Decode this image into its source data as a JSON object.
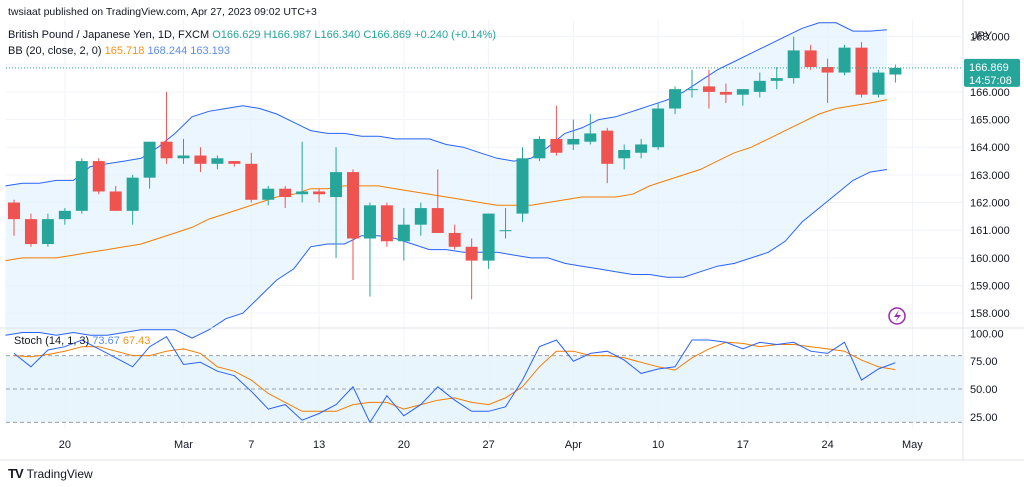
{
  "header": {
    "published_line": "twsiaat published on TradingView.com, Apr 27, 2023 09:02 UTC+3",
    "symbol_line": "British Pound / Japanese Yen, 1D, FXCM",
    "ohlc": {
      "O": "O166.629",
      "H": "H166.987",
      "L": "L166.340",
      "C": "C166.869",
      "chg": "+0.240 (+0.14%)"
    },
    "bb_label": "BB (20, close, 2, 0)",
    "bb_values": {
      "basis": "165.718",
      "upper": "168.244",
      "lower": "163.193"
    },
    "currency": "JPY"
  },
  "stoch_header": {
    "label": "Stoch (14, 1, 3)",
    "k": "73.67",
    "d": "67.43"
  },
  "price_badge": {
    "price": "166.869",
    "countdown": "14:57:08"
  },
  "brand": {
    "name": "TradingView",
    "logo": "TV"
  },
  "colors": {
    "up": "#26a69a",
    "down": "#ef5350",
    "bb_band": "#2962ff",
    "bb_basis": "#f57c00",
    "bb_fill": "#e3f2fd",
    "stoch_k": "#2962ff",
    "stoch_d": "#f57c00",
    "grid": "#f0f3fa"
  },
  "chart_data": [
    {
      "type": "candlestick",
      "title": "British Pound / Japanese Yen, 1D, FXCM",
      "ylabel": "JPY",
      "ylim": [
        157.5,
        168.6
      ],
      "yticks": [
        158.0,
        159.0,
        160.0,
        161.0,
        162.0,
        163.0,
        164.0,
        165.0,
        166.0,
        167.0,
        168.0
      ],
      "xticks": [
        {
          "label": "20",
          "i": 3
        },
        {
          "label": "Mar",
          "i": 10
        },
        {
          "label": "7",
          "i": 14
        },
        {
          "label": "13",
          "i": 18
        },
        {
          "label": "20",
          "i": 23
        },
        {
          "label": "27",
          "i": 28
        },
        {
          "label": "Apr",
          "i": 33
        },
        {
          "label": "10",
          "i": 38
        },
        {
          "label": "17",
          "i": 43
        },
        {
          "label": "24",
          "i": 48
        },
        {
          "label": "May",
          "i": 53
        }
      ],
      "candles": [
        {
          "o": 162.0,
          "h": 162.1,
          "l": 160.8,
          "c": 161.4
        },
        {
          "o": 161.4,
          "h": 161.6,
          "l": 160.4,
          "c": 160.5
        },
        {
          "o": 160.5,
          "h": 161.6,
          "l": 160.4,
          "c": 161.4
        },
        {
          "o": 161.4,
          "h": 161.8,
          "l": 161.2,
          "c": 161.7
        },
        {
          "o": 161.7,
          "h": 163.6,
          "l": 161.6,
          "c": 163.5
        },
        {
          "o": 163.5,
          "h": 163.6,
          "l": 162.3,
          "c": 162.4
        },
        {
          "o": 162.4,
          "h": 162.6,
          "l": 161.7,
          "c": 161.7
        },
        {
          "o": 161.7,
          "h": 163.0,
          "l": 161.2,
          "c": 162.9
        },
        {
          "o": 162.9,
          "h": 164.2,
          "l": 162.5,
          "c": 164.2
        },
        {
          "o": 164.2,
          "h": 166.0,
          "l": 163.4,
          "c": 163.6
        },
        {
          "o": 163.6,
          "h": 164.3,
          "l": 163.4,
          "c": 163.7
        },
        {
          "o": 163.7,
          "h": 164.0,
          "l": 163.1,
          "c": 163.4
        },
        {
          "o": 163.4,
          "h": 163.7,
          "l": 163.2,
          "c": 163.6
        },
        {
          "o": 163.5,
          "h": 163.5,
          "l": 163.3,
          "c": 163.4
        },
        {
          "o": 163.4,
          "h": 163.8,
          "l": 162.0,
          "c": 162.1
        },
        {
          "o": 162.1,
          "h": 162.6,
          "l": 161.9,
          "c": 162.5
        },
        {
          "o": 162.5,
          "h": 162.6,
          "l": 161.8,
          "c": 162.2
        },
        {
          "o": 162.3,
          "h": 164.2,
          "l": 162.0,
          "c": 162.4
        },
        {
          "o": 162.4,
          "h": 162.5,
          "l": 162.0,
          "c": 162.3
        },
        {
          "o": 162.2,
          "h": 164.0,
          "l": 160.0,
          "c": 163.1
        },
        {
          "o": 163.1,
          "h": 163.2,
          "l": 159.2,
          "c": 160.7
        },
        {
          "o": 160.7,
          "h": 162.0,
          "l": 158.6,
          "c": 161.9
        },
        {
          "o": 161.9,
          "h": 162.0,
          "l": 160.4,
          "c": 160.6
        },
        {
          "o": 160.6,
          "h": 161.8,
          "l": 159.9,
          "c": 161.2
        },
        {
          "o": 161.2,
          "h": 162.0,
          "l": 160.8,
          "c": 161.8
        },
        {
          "o": 161.8,
          "h": 163.2,
          "l": 160.9,
          "c": 160.9
        },
        {
          "o": 160.9,
          "h": 161.2,
          "l": 160.3,
          "c": 160.4
        },
        {
          "o": 160.4,
          "h": 160.7,
          "l": 158.5,
          "c": 159.9
        },
        {
          "o": 159.9,
          "h": 161.6,
          "l": 159.6,
          "c": 161.6
        },
        {
          "o": 161.0,
          "h": 161.8,
          "l": 160.7,
          "c": 161.0
        },
        {
          "o": 161.6,
          "h": 164.0,
          "l": 161.3,
          "c": 163.6
        },
        {
          "o": 163.6,
          "h": 164.4,
          "l": 163.5,
          "c": 164.3
        },
        {
          "o": 164.3,
          "h": 165.5,
          "l": 163.7,
          "c": 163.8
        },
        {
          "o": 164.1,
          "h": 165.0,
          "l": 163.9,
          "c": 164.3
        },
        {
          "o": 164.2,
          "h": 165.2,
          "l": 164.1,
          "c": 164.5
        },
        {
          "o": 164.6,
          "h": 164.7,
          "l": 162.7,
          "c": 163.4
        },
        {
          "o": 163.6,
          "h": 164.1,
          "l": 163.2,
          "c": 163.9
        },
        {
          "o": 163.8,
          "h": 164.3,
          "l": 163.6,
          "c": 164.1
        },
        {
          "o": 164.0,
          "h": 165.6,
          "l": 163.9,
          "c": 165.4
        },
        {
          "o": 165.4,
          "h": 166.2,
          "l": 165.2,
          "c": 166.1
        },
        {
          "o": 166.1,
          "h": 166.8,
          "l": 165.8,
          "c": 166.1
        },
        {
          "o": 166.2,
          "h": 166.8,
          "l": 165.4,
          "c": 166.0
        },
        {
          "o": 166.0,
          "h": 166.3,
          "l": 165.6,
          "c": 165.9
        },
        {
          "o": 165.9,
          "h": 166.1,
          "l": 165.5,
          "c": 166.1
        },
        {
          "o": 166.0,
          "h": 166.7,
          "l": 165.8,
          "c": 166.4
        },
        {
          "o": 166.4,
          "h": 166.9,
          "l": 166.1,
          "c": 166.5
        },
        {
          "o": 166.5,
          "h": 168.0,
          "l": 166.3,
          "c": 167.5
        },
        {
          "o": 167.5,
          "h": 167.7,
          "l": 166.8,
          "c": 166.9
        },
        {
          "o": 166.9,
          "h": 167.2,
          "l": 165.6,
          "c": 166.7
        },
        {
          "o": 166.7,
          "h": 167.7,
          "l": 166.6,
          "c": 167.6
        },
        {
          "o": 167.6,
          "h": 167.8,
          "l": 165.8,
          "c": 165.9
        },
        {
          "o": 165.9,
          "h": 166.8,
          "l": 165.8,
          "c": 166.7
        },
        {
          "o": 166.629,
          "h": 166.987,
          "l": 166.34,
          "c": 166.869
        }
      ],
      "bb_upper": [
        162.6,
        162.7,
        162.7,
        162.8,
        162.8,
        163.3,
        163.4,
        163.5,
        163.6,
        164.0,
        164.5,
        165.1,
        165.3,
        165.4,
        165.5,
        165.4,
        165.2,
        164.9,
        164.6,
        164.5,
        164.5,
        164.4,
        164.4,
        164.3,
        164.3,
        164.3,
        164.1,
        164.0,
        163.8,
        163.6,
        163.5,
        163.6,
        164.0,
        164.5,
        164.7,
        165.0,
        165.1,
        165.3,
        165.5,
        165.7,
        166.0,
        166.4,
        166.8,
        167.1,
        167.4,
        167.7,
        168.0,
        168.3,
        168.5,
        168.5,
        168.2,
        168.2,
        168.244
      ],
      "bb_basis": [
        159.9,
        160.0,
        160.0,
        160.0,
        160.1,
        160.2,
        160.3,
        160.4,
        160.5,
        160.7,
        160.9,
        161.1,
        161.4,
        161.6,
        161.8,
        162.0,
        162.2,
        162.3,
        162.5,
        162.5,
        162.6,
        162.6,
        162.6,
        162.5,
        162.4,
        162.3,
        162.2,
        162.1,
        162.0,
        161.9,
        161.9,
        161.9,
        162.0,
        162.1,
        162.2,
        162.2,
        162.2,
        162.3,
        162.6,
        162.8,
        163.0,
        163.2,
        163.5,
        163.8,
        164.0,
        164.3,
        164.6,
        164.9,
        165.2,
        165.4,
        165.5,
        165.6,
        165.718
      ],
      "bb_lower": [
        157.2,
        157.3,
        157.3,
        157.2,
        157.3,
        157.2,
        157.2,
        157.3,
        157.4,
        157.4,
        157.4,
        157.1,
        157.4,
        157.8,
        158.0,
        158.6,
        159.2,
        159.6,
        160.4,
        160.5,
        160.5,
        160.8,
        160.8,
        160.7,
        160.5,
        160.3,
        160.3,
        160.2,
        160.2,
        160.2,
        160.1,
        160.0,
        160.0,
        159.8,
        159.7,
        159.6,
        159.5,
        159.4,
        159.4,
        159.3,
        159.3,
        159.5,
        159.7,
        159.8,
        160.0,
        160.2,
        160.6,
        161.3,
        161.8,
        162.3,
        162.8,
        163.1,
        163.193
      ],
      "last_price": 166.869
    },
    {
      "type": "line",
      "title": "Stoch (14, 1, 3)",
      "ylim": [
        15,
        103
      ],
      "yticks": [
        25.0,
        50.0,
        75.0,
        100.0
      ],
      "bands": {
        "upper": 80,
        "middle": 50,
        "lower": 20
      },
      "series": [
        {
          "name": "%K",
          "values": [
            82,
            70,
            85,
            88,
            94,
            86,
            78,
            70,
            88,
            97,
            72,
            74,
            66,
            62,
            48,
            32,
            36,
            22,
            28,
            36,
            52,
            20,
            44,
            26,
            36,
            52,
            40,
            30,
            30,
            34,
            58,
            88,
            94,
            75,
            82,
            84,
            76,
            64,
            68,
            70,
            94,
            94,
            92,
            86,
            92,
            90,
            92,
            84,
            82,
            92,
            58,
            68,
            73.67
          ]
        },
        {
          "name": "%D",
          "values": [
            80,
            79,
            81,
            84,
            88,
            88,
            84,
            80,
            80,
            84,
            86,
            82,
            70,
            66,
            58,
            46,
            38,
            30,
            30,
            30,
            36,
            38,
            38,
            32,
            36,
            40,
            42,
            38,
            36,
            42,
            52,
            70,
            84,
            84,
            80,
            80,
            78,
            74,
            70,
            67,
            78,
            86,
            92,
            91,
            88,
            90,
            90,
            88,
            86,
            84,
            76,
            70,
            67.43
          ]
        }
      ]
    }
  ]
}
